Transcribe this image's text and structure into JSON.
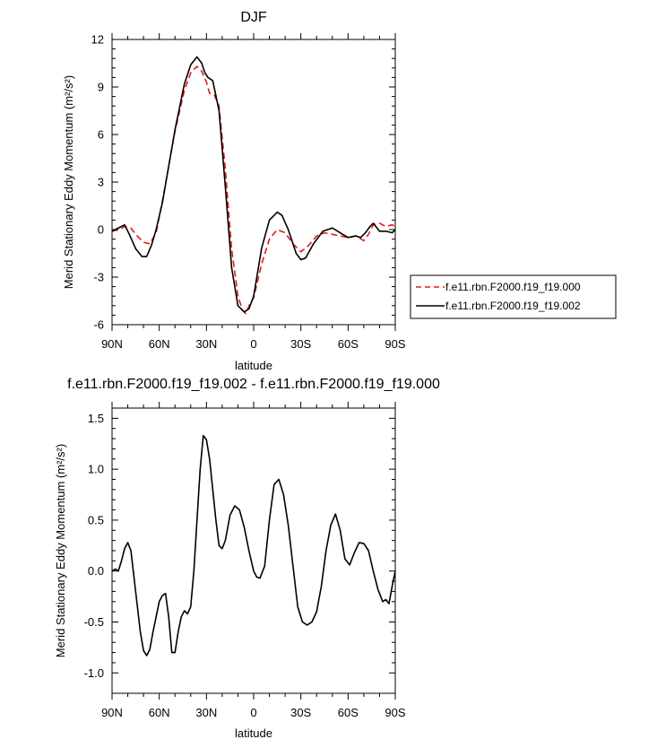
{
  "chart_data": [
    {
      "type": "line",
      "title": "DJF",
      "xlabel": "latitude",
      "ylabel": "Merid Stationary Eddy Momentum (m²/s²)",
      "xlim": [
        -90,
        90
      ],
      "ylim": [
        -6,
        12
      ],
      "x_ticks": [
        -90,
        -60,
        -30,
        0,
        30,
        60,
        90
      ],
      "x_tick_labels": [
        "90N",
        "60N",
        "30N",
        "0",
        "30S",
        "60S",
        "90S"
      ],
      "y_ticks": [
        -6,
        -3,
        0,
        3,
        6,
        9,
        12
      ],
      "y_tick_labels": [
        "-6",
        "-3",
        "0",
        "3",
        "6",
        "9",
        "12"
      ],
      "legend_position": "right",
      "series": [
        {
          "name": "f.e11.rbn.F2000.f19_f19.000",
          "color": "#e31a1c",
          "dash": "dashed",
          "x": [
            -90,
            -85,
            -82,
            -78,
            -75,
            -70,
            -66,
            -62,
            -58,
            -50,
            -44,
            -40,
            -36,
            -33,
            -30,
            -28,
            -25,
            -22,
            -18,
            -14,
            -10,
            -7,
            -5,
            -2,
            0,
            5,
            10,
            15,
            20,
            25,
            30,
            35,
            40,
            45,
            50,
            55,
            60,
            65,
            70,
            73,
            76,
            80,
            84,
            88,
            90
          ],
          "y": [
            -0.1,
            0.0,
            0.2,
            0.1,
            -0.3,
            -0.8,
            -0.9,
            -0.2,
            1.8,
            6.2,
            8.8,
            9.9,
            10.3,
            10.0,
            9.3,
            8.6,
            8.5,
            7.8,
            3.8,
            -1.2,
            -4.2,
            -5.1,
            -5.3,
            -4.6,
            -4.3,
            -2.2,
            -0.6,
            0.0,
            -0.2,
            -0.9,
            -1.4,
            -1.0,
            -0.4,
            -0.2,
            -0.3,
            -0.4,
            -0.5,
            -0.4,
            -0.7,
            -0.3,
            0.3,
            0.4,
            0.2,
            0.3,
            0.2
          ]
        },
        {
          "name": "f.e11.rbn.F2000.f19_f19.002",
          "color": "#000000",
          "dash": "solid",
          "x": [
            -90,
            -86,
            -82,
            -79,
            -75,
            -71,
            -68,
            -65,
            -62,
            -58,
            -50,
            -44,
            -40,
            -36,
            -33,
            -31,
            -29,
            -26,
            -22,
            -18,
            -14,
            -10,
            -6,
            -3,
            0,
            5,
            10,
            15,
            18,
            22,
            27,
            30,
            33,
            38,
            44,
            50,
            55,
            60,
            65,
            68,
            71,
            74,
            76,
            80,
            84,
            88,
            90
          ],
          "y": [
            -0.1,
            0.1,
            0.3,
            -0.3,
            -1.2,
            -1.7,
            -1.7,
            -1.0,
            0.0,
            1.7,
            6.3,
            9.2,
            10.4,
            10.9,
            10.5,
            9.9,
            9.6,
            9.4,
            7.5,
            2.7,
            -2.4,
            -4.8,
            -5.2,
            -5.0,
            -4.2,
            -1.2,
            0.6,
            1.1,
            0.9,
            0.0,
            -1.5,
            -1.9,
            -1.8,
            -0.9,
            -0.1,
            0.1,
            -0.2,
            -0.5,
            -0.4,
            -0.5,
            -0.2,
            0.2,
            0.4,
            -0.1,
            -0.1,
            -0.2,
            0.0
          ]
        }
      ]
    },
    {
      "type": "line",
      "title": "f.e11.rbn.F2000.f19_f19.002 - f.e11.rbn.F2000.f19_f19.000",
      "xlabel": "latitude",
      "ylabel": "Merid Stationary Eddy Momentum (m²/s²)",
      "xlim": [
        -90,
        90
      ],
      "ylim": [
        -1.2,
        1.6
      ],
      "x_ticks": [
        -90,
        -60,
        -30,
        0,
        30,
        60,
        90
      ],
      "x_tick_labels": [
        "90N",
        "60N",
        "30N",
        "0",
        "30S",
        "60S",
        "90S"
      ],
      "y_ticks": [
        -1.0,
        -0.5,
        0.0,
        0.5,
        1.0,
        1.5
      ],
      "y_tick_labels": [
        "-1.0",
        "-0.5",
        "0.0",
        "0.5",
        "1.0",
        "1.5"
      ],
      "series": [
        {
          "color": "#000000",
          "dash": "solid",
          "x": [
            -90,
            -88,
            -86,
            -84,
            -82,
            -80,
            -78,
            -75,
            -72,
            -70,
            -68,
            -66,
            -64,
            -62,
            -60,
            -58,
            -56,
            -54,
            -52,
            -50,
            -48,
            -46,
            -44,
            -42,
            -40,
            -38,
            -36,
            -34,
            -32,
            -30,
            -28,
            -26,
            -24,
            -22,
            -20,
            -18,
            -15,
            -12,
            -9,
            -6,
            -3,
            0,
            2,
            4,
            7,
            10,
            13,
            16,
            19,
            22,
            25,
            28,
            31,
            34,
            37,
            40,
            43,
            46,
            49,
            52,
            55,
            58,
            61,
            64,
            67,
            70,
            73,
            76,
            79,
            82,
            84,
            86,
            88,
            90
          ],
          "y": [
            0.0,
            0.02,
            0.0,
            0.1,
            0.22,
            0.28,
            0.2,
            -0.2,
            -0.6,
            -0.78,
            -0.83,
            -0.77,
            -0.6,
            -0.45,
            -0.3,
            -0.24,
            -0.22,
            -0.45,
            -0.8,
            -0.8,
            -0.6,
            -0.45,
            -0.39,
            -0.42,
            -0.35,
            0.0,
            0.5,
            1.0,
            1.33,
            1.29,
            1.1,
            0.8,
            0.5,
            0.25,
            0.22,
            0.3,
            0.55,
            0.64,
            0.6,
            0.43,
            0.2,
            0.0,
            -0.06,
            -0.07,
            0.05,
            0.5,
            0.85,
            0.9,
            0.75,
            0.45,
            0.05,
            -0.35,
            -0.5,
            -0.53,
            -0.5,
            -0.4,
            -0.15,
            0.2,
            0.45,
            0.56,
            0.4,
            0.12,
            0.06,
            0.18,
            0.28,
            0.27,
            0.2,
            0.0,
            -0.18,
            -0.3,
            -0.28,
            -0.32,
            -0.15,
            0.0
          ]
        }
      ]
    }
  ]
}
